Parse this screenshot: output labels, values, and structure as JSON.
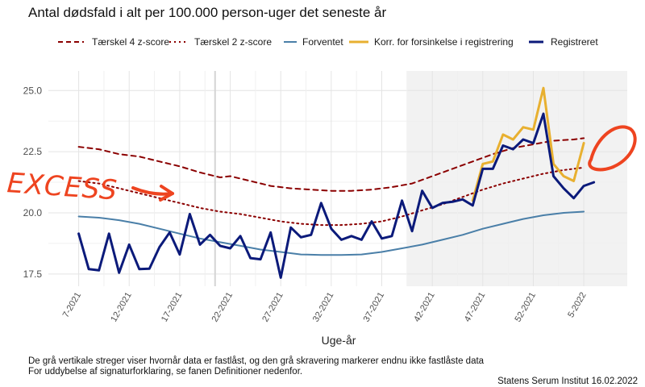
{
  "chart_data": {
    "type": "line",
    "title": "Antal dødsfald i alt per 100.000 person-uger det seneste år",
    "xlabel": "Uge-år",
    "ylabel": "",
    "ylim": [
      17.0,
      25.8
    ],
    "yticks": [
      "17.5",
      "20.0",
      "22.5",
      "25.0"
    ],
    "xticks": [
      {
        "week": 7,
        "label": "7-2021"
      },
      {
        "week": 12,
        "label": "12-2021"
      },
      {
        "week": 17,
        "label": "17-2021"
      },
      {
        "week": 22,
        "label": "22-2021"
      },
      {
        "week": 27,
        "label": "27-2021"
      },
      {
        "week": 32,
        "label": "32-2021"
      },
      {
        "week": 37,
        "label": "37-2021"
      },
      {
        "week": 42,
        "label": "42-2021"
      },
      {
        "week": 47,
        "label": "47-2021"
      },
      {
        "week": 52,
        "label": "52-2021"
      },
      {
        "week": 57,
        "label": "5-2022"
      }
    ],
    "x_range": [
      4.0,
      61.3
    ],
    "non_final_start_week": 39.5,
    "finalized_line_week": 20.5,
    "series": [
      {
        "name": "Tærskel 4 z-score",
        "color": "#8b0000",
        "style": "dashed",
        "x": [
          7,
          9,
          11,
          13,
          15,
          17,
          19,
          21,
          22,
          24,
          26,
          28,
          30,
          32,
          34,
          36,
          38,
          40,
          42,
          44,
          46,
          48,
          50,
          52,
          54,
          56,
          57
        ],
        "values": [
          22.7,
          22.6,
          22.4,
          22.3,
          22.1,
          21.9,
          21.65,
          21.45,
          21.5,
          21.3,
          21.1,
          21.0,
          20.95,
          20.9,
          20.9,
          20.95,
          21.05,
          21.2,
          21.5,
          21.8,
          22.1,
          22.4,
          22.65,
          22.8,
          22.95,
          23.0,
          23.05
        ]
      },
      {
        "name": "Tærskel 2 z-score",
        "color": "#8b0000",
        "style": "dotted",
        "x": [
          7,
          9,
          11,
          13,
          15,
          17,
          19,
          21,
          23,
          25,
          27,
          29,
          31,
          33,
          35,
          37,
          39,
          41,
          43,
          45,
          47,
          49,
          51,
          53,
          55,
          57
        ],
        "values": [
          21.3,
          21.2,
          21.0,
          20.8,
          20.6,
          20.4,
          20.2,
          20.05,
          19.95,
          19.8,
          19.65,
          19.55,
          19.5,
          19.5,
          19.55,
          19.65,
          19.85,
          20.1,
          20.35,
          20.65,
          20.95,
          21.2,
          21.4,
          21.6,
          21.75,
          21.85
        ]
      },
      {
        "name": "Forventet",
        "color": "#4a7fa8",
        "style": "solid",
        "x": [
          7,
          9,
          11,
          13,
          15,
          17,
          19,
          21,
          23,
          25,
          27,
          29,
          31,
          33,
          35,
          37,
          39,
          41,
          43,
          45,
          47,
          49,
          51,
          53,
          55,
          57
        ],
        "values": [
          19.85,
          19.8,
          19.7,
          19.55,
          19.35,
          19.15,
          18.95,
          18.8,
          18.65,
          18.5,
          18.4,
          18.3,
          18.28,
          18.28,
          18.3,
          18.4,
          18.55,
          18.7,
          18.9,
          19.1,
          19.35,
          19.55,
          19.75,
          19.9,
          20.0,
          20.05
        ]
      },
      {
        "name": "Korr. for forsinkelse i registrering",
        "color": "#e8b030",
        "style": "solid",
        "x": [
          46,
          47,
          48,
          49,
          50,
          51,
          52,
          53,
          54,
          55,
          56,
          57
        ],
        "values": [
          20.5,
          22.0,
          22.1,
          23.2,
          23.0,
          23.5,
          23.4,
          25.1,
          22.0,
          21.5,
          21.3,
          22.85
        ]
      },
      {
        "name": "Registreret",
        "color": "#0b1a7a",
        "style": "solid",
        "x": [
          7,
          8,
          9,
          10,
          11,
          12,
          13,
          14,
          15,
          16,
          17,
          18,
          19,
          20,
          21,
          22,
          23,
          24,
          25,
          26,
          27,
          28,
          29,
          30,
          31,
          32,
          33,
          34,
          35,
          36,
          37,
          38,
          39,
          40,
          41,
          42,
          43,
          44,
          45,
          46,
          47,
          48,
          49,
          50,
          51,
          52,
          53,
          54,
          55,
          56,
          57,
          58
        ],
        "values": [
          19.15,
          17.7,
          17.65,
          19.15,
          17.55,
          18.7,
          17.7,
          17.72,
          18.6,
          19.2,
          18.3,
          19.95,
          18.7,
          19.1,
          18.65,
          18.55,
          19.05,
          18.15,
          18.1,
          19.2,
          17.35,
          19.4,
          19.0,
          19.1,
          20.4,
          19.35,
          18.9,
          19.05,
          18.9,
          19.65,
          18.95,
          19.05,
          20.5,
          19.25,
          20.9,
          20.2,
          20.4,
          20.45,
          20.55,
          20.3,
          21.8,
          21.8,
          22.75,
          22.6,
          23.0,
          22.85,
          24.05,
          21.5,
          21.0,
          20.6,
          21.1,
          21.25
        ]
      }
    ],
    "annotation": "EXCESS"
  },
  "notes": {
    "line1": "De grå vertikale streger viser hvornår data er fastlåst, og den grå skravering markerer endnu ikke fastlåste data",
    "line2": "For uddybelse af signaturforklaring, se fanen Definitioner nedenfor.",
    "source": "Statens Serum Institut  16.02.2022"
  },
  "colors": {
    "background": "#ffffff",
    "shade": "#f2f2f2",
    "grid_major": "#e4e4e4",
    "grid_minor": "#f0f0f0",
    "annotation": "#ee4420"
  }
}
